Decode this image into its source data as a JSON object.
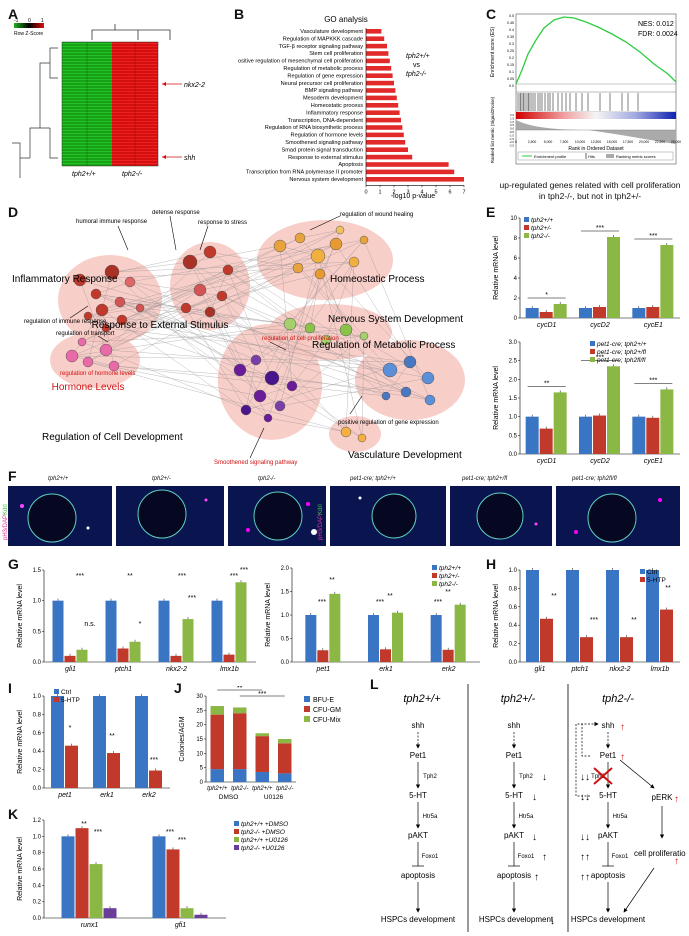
{
  "letters": {
    "A": "A",
    "B": "B",
    "C": "C",
    "D": "D",
    "E": "E",
    "F": "F",
    "G": "G",
    "H": "H",
    "I": "I",
    "J": "J",
    "K": "K",
    "L": "L"
  },
  "panelA": {
    "legend_ticks": [
      "-1",
      "0",
      "1"
    ],
    "legend_label": "Row Z-Score",
    "genes": [
      "nkx2-2",
      "shh"
    ],
    "groups": [
      "tph2+/+",
      "tph2-/-"
    ],
    "colors": {
      "low": "#1fb31f",
      "high": "#e01010"
    }
  },
  "panelB": {
    "title": "GO analysis",
    "xlabel": "-log10 p-value",
    "annotation": [
      "tph2+/+",
      "vs",
      "tph2-/-"
    ],
    "ticks": [
      "0",
      "1",
      "2",
      "3",
      "4",
      "5",
      "6",
      "7"
    ]
  },
  "panelC": {
    "nes": "NES: 0.012",
    "fdr": "FDR: 0.0024",
    "ylabel_top": "Enrichment score (ES)",
    "ylabel_bottom": "Ranked list metric (Signal2Noise)",
    "xlabel": "Rank in Ordered Dataset",
    "legend": [
      "Enrichment profile",
      "Hits",
      "Ranking metric scores"
    ],
    "caption": "up-regulated genes related with cell proliferation in tph2-/-, but not in tph2+/-",
    "yticks_top": [
      "0.5",
      "0.45",
      "0.4",
      "0.35",
      "0.3",
      "0.25",
      "0.2",
      "0.15",
      "0.1",
      "0.05",
      "0.0"
    ],
    "yticks_bottom": [
      "2.0",
      "1.5",
      "1.0",
      "0.5",
      "0.0",
      "-0.5",
      "-1.0",
      "-1.5",
      "-2.0",
      "-2.5"
    ],
    "xticks": [
      "0",
      "2,500",
      "5,000",
      "7,500",
      "10,000",
      "12,500",
      "15,000",
      "17,500",
      "20,000",
      "22,500",
      "25,000"
    ]
  },
  "panelD": {
    "clusters": [
      "Inflammatory Response",
      "Response to External Stimulus",
      "Homeostatic Process",
      "Nervous System Development",
      "Regulation of Metabolic Process",
      "Hormone Levels",
      "Regulation of Cell Development",
      "Vasculature Development"
    ],
    "annotations": [
      "humoral immune response",
      "defense response",
      "response to stress",
      "regulation of wound healing",
      "regulation of immune response",
      "regulation of transport",
      "regulation of hormone levels",
      "regulation of cell proliferation",
      "positive regulation of gene expression",
      "Smoothened signaling pathway"
    ]
  },
  "panelE": {
    "ylabel": "Relative mRNA level",
    "legend1": [
      "tph2+/+",
      "tph2+/-",
      "tph2-/-"
    ],
    "legend2": [
      "pet1-cre; tph2+/+",
      "pet1-cre; tph2+/fl",
      "pet1-cre; tph2fl/fl"
    ],
    "genes": [
      "cycD1",
      "cycD2",
      "cycE1"
    ],
    "sig1": [
      "*",
      "***",
      "***"
    ],
    "sig2": [
      "**",
      "***",
      "***"
    ]
  },
  "panelF": {
    "labels": [
      "tph2+/+",
      "tph2+/-",
      "tph2-/-",
      "pet1-cre; tph2+/+",
      "pet1-cre; tph2+/fl",
      "pet1-cre; tph2fl/fl"
    ],
    "stain": "pH3/DAPI",
    "stain2": "Kdrl"
  },
  "panelG": {
    "ylabel": "Relative mRNA level",
    "genes1": [
      "gli1",
      "ptch1",
      "nkx2-2",
      "lmx1b"
    ],
    "genes2": [
      "pet1",
      "erk1",
      "erk2"
    ],
    "legend": [
      "tph2+/+",
      "tph2+/-",
      "tph2-/-"
    ]
  },
  "panelH": {
    "ylabel": "Relative mRNA level",
    "legend": [
      "Ctrl",
      "5-HTP"
    ],
    "genes": [
      "gli1",
      "ptch1",
      "nkx2-2",
      "lmx1b"
    ],
    "sig": [
      "**",
      "***",
      "**",
      "**"
    ]
  },
  "panelI": {
    "ylabel": "Relative mRNA level",
    "legend": [
      "Ctrl",
      "5-HTP"
    ],
    "genes": [
      "pet1",
      "erk1",
      "erk2"
    ],
    "sig": [
      "*",
      "**",
      "***"
    ]
  },
  "panelJ": {
    "ylabel": "Colonies/AGM",
    "legend": [
      "BFU-E",
      "CFU-GM",
      "CFU-Mix"
    ],
    "groups": [
      "tph2+/+",
      "tph2-/-",
      "tph2+/+",
      "tph2-/-"
    ],
    "treatments": [
      "DMSO",
      "U0126"
    ],
    "sig": [
      "**",
      "***"
    ]
  },
  "panelK": {
    "ylabel": "Relative mRNA level",
    "genes": [
      "runx1",
      "gfi1"
    ],
    "legend": [
      "tph2+/+ +DMSO",
      "tph2-/- +DMSO",
      "tph2+/+ +U0126",
      "tph2-/- +U0126"
    ],
    "sig": [
      "**",
      "***",
      "***",
      "***"
    ]
  },
  "panelL": {
    "columns": [
      "tph2+/+",
      "tph2+/-",
      "tph2-/-"
    ],
    "nodes": [
      "shh",
      "Pet1",
      "Tph2",
      "5-HT",
      "Htr5a",
      "pAKT",
      "Foxo1",
      "apoptosis",
      "HSPCs development",
      "pERK",
      "cell proliferation"
    ]
  },
  "colors": {
    "blue": "#3a75c4",
    "red": "#c0392b",
    "green": "#8bb745",
    "purple": "#6a3d9a"
  },
  "chart_data": [
    {
      "type": "bar",
      "title": "GO analysis",
      "xlabel": "-log10 p-value",
      "xlim": [
        0,
        7
      ],
      "categories": [
        "Vasculature development",
        "Regulation of MAPKKK cascade",
        "TGF-β receptor signaling pathway",
        "Stem cell proliferation",
        "Positive regulation of mesenchymal cell proliferation",
        "Regulation of metabolic process",
        "Regulation of gene expression",
        "Neural precursor cell proliferation",
        "BMP signaling pathway",
        "Mesoderm development",
        "Homeostatic process",
        "Inflammatory response",
        "Transcription, DNA-dependent",
        "Regulation of RNA biosynthetic process",
        "Regulation of hormone levels",
        "Smoothened signaling pathway",
        "Smad protein signal transduction",
        "Response to external stimulus",
        "Apoptosis",
        "Transcription from RNA polymerase II promoter",
        "Nervous system development"
      ],
      "values": [
        1.1,
        1.3,
        1.5,
        1.6,
        1.7,
        1.8,
        1.9,
        2.0,
        2.1,
        2.2,
        2.3,
        2.4,
        2.5,
        2.6,
        2.7,
        2.8,
        3.0,
        3.3,
        5.9,
        6.3,
        7.0
      ]
    },
    {
      "type": "bar",
      "ylabel": "Relative mRNA level",
      "ylim": [
        0,
        10
      ],
      "categories": [
        "cycD1",
        "cycD2",
        "cycE1"
      ],
      "series": [
        {
          "name": "tph2+/+",
          "values": [
            1.0,
            1.0,
            1.0
          ]
        },
        {
          "name": "tph2+/-",
          "values": [
            0.6,
            1.1,
            1.1
          ]
        },
        {
          "name": "tph2-/-",
          "values": [
            1.4,
            8.1,
            7.3
          ]
        }
      ]
    },
    {
      "type": "bar",
      "ylabel": "Relative mRNA level",
      "ylim": [
        0,
        3
      ],
      "categories": [
        "cycD1",
        "cycD2",
        "cycE1"
      ],
      "series": [
        {
          "name": "pet1-cre; tph2+/+",
          "values": [
            1.0,
            1.0,
            1.0
          ]
        },
        {
          "name": "pet1-cre; tph2+/fl",
          "values": [
            0.68,
            1.03,
            0.97
          ]
        },
        {
          "name": "pet1-cre; tph2fl/fl",
          "values": [
            1.65,
            2.35,
            1.73
          ]
        }
      ]
    },
    {
      "type": "bar",
      "ylabel": "Relative mRNA level",
      "ylim": [
        0,
        1.5
      ],
      "categories": [
        "gli1",
        "ptch1",
        "nkx2-2",
        "lmx1b"
      ],
      "series": [
        {
          "name": "tph2+/+",
          "values": [
            1.0,
            1.0,
            1.0,
            1.0
          ]
        },
        {
          "name": "tph2+/-",
          "values": [
            0.1,
            0.22,
            0.1,
            0.12
          ]
        },
        {
          "name": "tph2-/-",
          "values": [
            0.2,
            0.33,
            0.7,
            1.3
          ]
        }
      ]
    },
    {
      "type": "bar",
      "ylabel": "Relative mRNA level",
      "ylim": [
        0,
        2
      ],
      "categories": [
        "pet1",
        "erk1",
        "erk2"
      ],
      "series": [
        {
          "name": "tph2+/+",
          "values": [
            1.0,
            1.0,
            1.0
          ]
        },
        {
          "name": "tph2+/-",
          "values": [
            0.25,
            0.27,
            0.26
          ]
        },
        {
          "name": "tph2-/-",
          "values": [
            1.45,
            1.05,
            1.22
          ]
        }
      ]
    },
    {
      "type": "bar",
      "ylabel": "Relative mRNA level",
      "ylim": [
        0,
        1
      ],
      "categories": [
        "gli1",
        "ptch1",
        "nkx2-2",
        "lmx1b"
      ],
      "series": [
        {
          "name": "Ctrl",
          "values": [
            1.0,
            1.0,
            1.0,
            1.0
          ]
        },
        {
          "name": "5-HTP",
          "values": [
            0.47,
            0.27,
            0.27,
            0.57
          ]
        }
      ]
    },
    {
      "type": "bar",
      "ylabel": "Relative mRNA level",
      "ylim": [
        0,
        1
      ],
      "categories": [
        "pet1",
        "erk1",
        "erk2"
      ],
      "series": [
        {
          "name": "Ctrl",
          "values": [
            1.0,
            1.0,
            1.0
          ]
        },
        {
          "name": "5-HTP",
          "values": [
            0.46,
            0.38,
            0.19
          ]
        }
      ]
    },
    {
      "type": "bar",
      "ylabel": "Colonies/AGM",
      "ylim": [
        0,
        30
      ],
      "categories": [
        "tph2+/+ DMSO",
        "tph2-/- DMSO",
        "tph2+/+ U0126",
        "tph2-/- U0126"
      ],
      "series": [
        {
          "name": "BFU-E",
          "values": [
            4.5,
            4.5,
            3.5,
            3.0
          ]
        },
        {
          "name": "CFU-GM",
          "values": [
            19,
            19.5,
            12.5,
            10.5
          ]
        },
        {
          "name": "CFU-Mix",
          "values": [
            3,
            2,
            1,
            1.5
          ]
        }
      ]
    },
    {
      "type": "bar",
      "ylabel": "Relative mRNA level",
      "ylim": [
        0,
        1.2
      ],
      "categories": [
        "runx1",
        "gfi1"
      ],
      "series": [
        {
          "name": "tph2+/+ +DMSO",
          "values": [
            1.0,
            1.0
          ]
        },
        {
          "name": "tph2-/- +DMSO",
          "values": [
            1.1,
            0.84
          ]
        },
        {
          "name": "tph2+/+ +U0126",
          "values": [
            0.66,
            0.12
          ]
        },
        {
          "name": "tph2-/- +U0126",
          "values": [
            0.12,
            0.04
          ]
        }
      ]
    }
  ]
}
